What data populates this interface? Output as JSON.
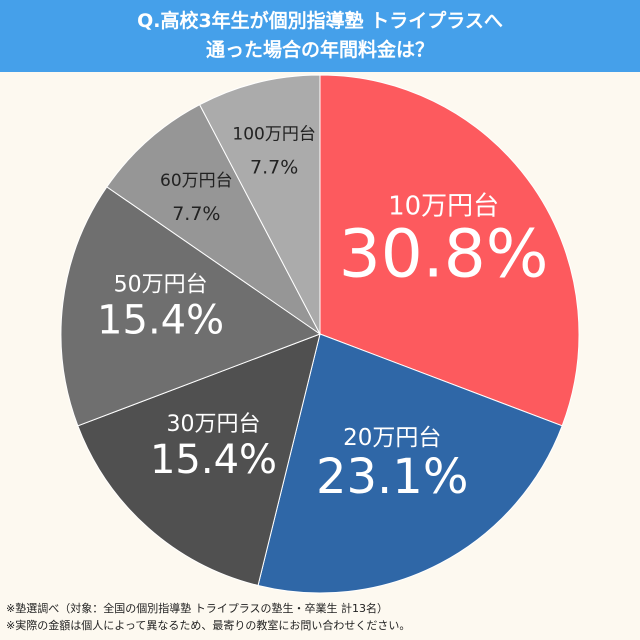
{
  "title": {
    "line1": "Q.高校3年生が個別指導塾 トライプラスへ",
    "line2": "通った場合の年間料金は？"
  },
  "colors": {
    "title_bg": "#45a0ea",
    "background": "#fdf9f0",
    "slice_1": "#fd5a5e",
    "slice_2": "#2f67a7",
    "slice_3": "#505050",
    "slice_4": "#6f6f6f",
    "slice_5": "#969696",
    "slice_6": "#ababab"
  },
  "chart_data": {
    "type": "pie",
    "title": "Q.高校3年生が個別指導塾 トライプラスへ通った場合の年間料金は？",
    "start_angle": "12 o'clock",
    "direction": "clockwise",
    "slices": [
      {
        "label": "10万円台",
        "value": 30.8,
        "value_label": "30.8%",
        "color": "#fd5a5e"
      },
      {
        "label": "20万円台",
        "value": 23.1,
        "value_label": "23.1%",
        "color": "#2f67a7"
      },
      {
        "label": "30万円台",
        "value": 15.4,
        "value_label": "15.4%",
        "color": "#505050"
      },
      {
        "label": "50万円台",
        "value": 15.4,
        "value_label": "15.4%",
        "color": "#6f6f6f"
      },
      {
        "label": "60万円台",
        "value": 7.7,
        "value_label": "7.7%",
        "color": "#969696"
      },
      {
        "label": "100万円台",
        "value": 7.7,
        "value_label": "7.7%",
        "color": "#ababab"
      }
    ]
  },
  "footnotes": {
    "line1": "※塾選調べ（対象：全国の個別指導塾 トライプラスの塾生・卒業生 計13名）",
    "line2": "※実際の金額は個人によって異なるため、最寄りの教室にお問い合わせください。"
  }
}
